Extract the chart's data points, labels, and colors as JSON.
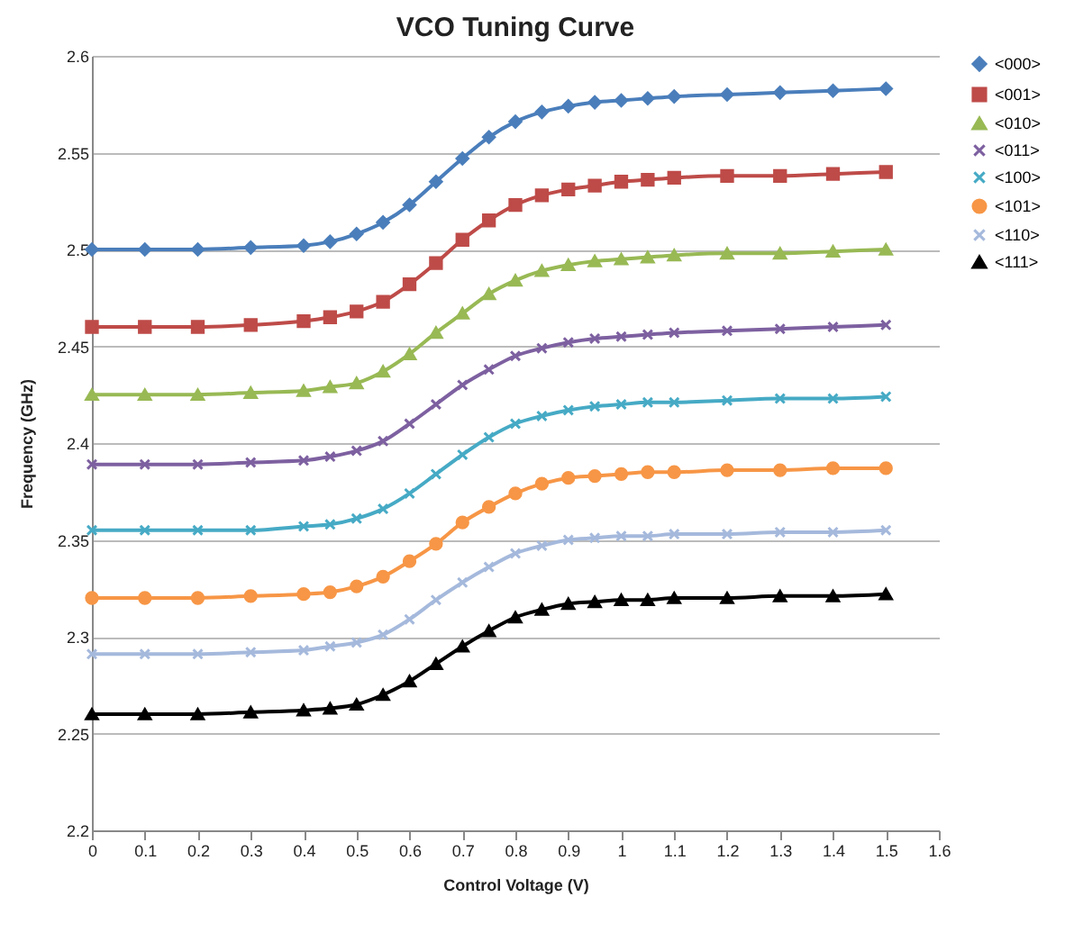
{
  "chart_data": {
    "type": "line",
    "title": "VCO Tuning Curve",
    "xlabel": "Control Voltage (V)",
    "ylabel": "Frequency (GHz)",
    "x": [
      0,
      0.1,
      0.2,
      0.3,
      0.4,
      0.45,
      0.5,
      0.55,
      0.6,
      0.65,
      0.7,
      0.75,
      0.8,
      0.85,
      0.9,
      0.95,
      1,
      1.05,
      1.1,
      1.2,
      1.3,
      1.4,
      1.5
    ],
    "xlim": [
      0,
      1.6
    ],
    "xticks": [
      0,
      0.1,
      0.2,
      0.3,
      0.4,
      0.5,
      0.6,
      0.7,
      0.8,
      0.9,
      1,
      1.1,
      1.2,
      1.3,
      1.4,
      1.5,
      1.6
    ],
    "ylim": [
      2.2,
      2.6
    ],
    "yticks": [
      2.2,
      2.25,
      2.3,
      2.35,
      2.4,
      2.45,
      2.5,
      2.55,
      2.6
    ],
    "grid": "y",
    "legend": "right",
    "series": [
      {
        "name": "<000>",
        "color": "#4a7ebb",
        "marker": "diamond",
        "values": [
          2.5,
          2.5,
          2.5,
          2.501,
          2.502,
          2.504,
          2.508,
          2.514,
          2.523,
          2.535,
          2.547,
          2.558,
          2.566,
          2.571,
          2.574,
          2.576,
          2.577,
          2.578,
          2.579,
          2.58,
          2.581,
          2.582,
          2.583
        ]
      },
      {
        "name": "<001>",
        "color": "#be4b48",
        "marker": "square",
        "values": [
          2.46,
          2.46,
          2.46,
          2.461,
          2.463,
          2.465,
          2.468,
          2.473,
          2.482,
          2.493,
          2.505,
          2.515,
          2.523,
          2.528,
          2.531,
          2.533,
          2.535,
          2.536,
          2.537,
          2.538,
          2.538,
          2.539,
          2.54
        ]
      },
      {
        "name": "<010>",
        "color": "#98b954",
        "marker": "triangle",
        "values": [
          2.425,
          2.425,
          2.425,
          2.426,
          2.427,
          2.429,
          2.431,
          2.437,
          2.446,
          2.457,
          2.467,
          2.477,
          2.484,
          2.489,
          2.492,
          2.494,
          2.495,
          2.496,
          2.497,
          2.498,
          2.498,
          2.499,
          2.5
        ]
      },
      {
        "name": "<011>",
        "color": "#7d60a0",
        "marker": "cross",
        "values": [
          2.389,
          2.389,
          2.389,
          2.39,
          2.391,
          2.393,
          2.396,
          2.401,
          2.41,
          2.42,
          2.43,
          2.438,
          2.445,
          2.449,
          2.452,
          2.454,
          2.455,
          2.456,
          2.457,
          2.458,
          2.459,
          2.46,
          2.461
        ]
      },
      {
        "name": "<100>",
        "color": "#46aac5",
        "marker": "cross",
        "values": [
          2.355,
          2.355,
          2.355,
          2.355,
          2.357,
          2.358,
          2.361,
          2.366,
          2.374,
          2.384,
          2.394,
          2.403,
          2.41,
          2.414,
          2.417,
          2.419,
          2.42,
          2.421,
          2.421,
          2.422,
          2.423,
          2.423,
          2.424
        ]
      },
      {
        "name": "<101>",
        "color": "#f79646",
        "marker": "circle",
        "values": [
          2.32,
          2.32,
          2.32,
          2.321,
          2.322,
          2.323,
          2.326,
          2.331,
          2.339,
          2.348,
          2.359,
          2.367,
          2.374,
          2.379,
          2.382,
          2.383,
          2.384,
          2.385,
          2.385,
          2.386,
          2.386,
          2.387,
          2.387
        ]
      },
      {
        "name": "<110>",
        "color": "#a5b9dc",
        "marker": "cross",
        "values": [
          2.291,
          2.291,
          2.291,
          2.292,
          2.293,
          2.295,
          2.297,
          2.301,
          2.309,
          2.319,
          2.328,
          2.336,
          2.343,
          2.347,
          2.35,
          2.351,
          2.352,
          2.352,
          2.353,
          2.353,
          2.354,
          2.354,
          2.355
        ]
      },
      {
        "name": "<111>",
        "color": "#000000",
        "marker": "triangle",
        "values": [
          2.26,
          2.26,
          2.26,
          2.261,
          2.262,
          2.263,
          2.265,
          2.27,
          2.277,
          2.286,
          2.295,
          2.303,
          2.31,
          2.314,
          2.317,
          2.318,
          2.319,
          2.319,
          2.32,
          2.32,
          2.321,
          2.321,
          2.322
        ]
      }
    ]
  }
}
